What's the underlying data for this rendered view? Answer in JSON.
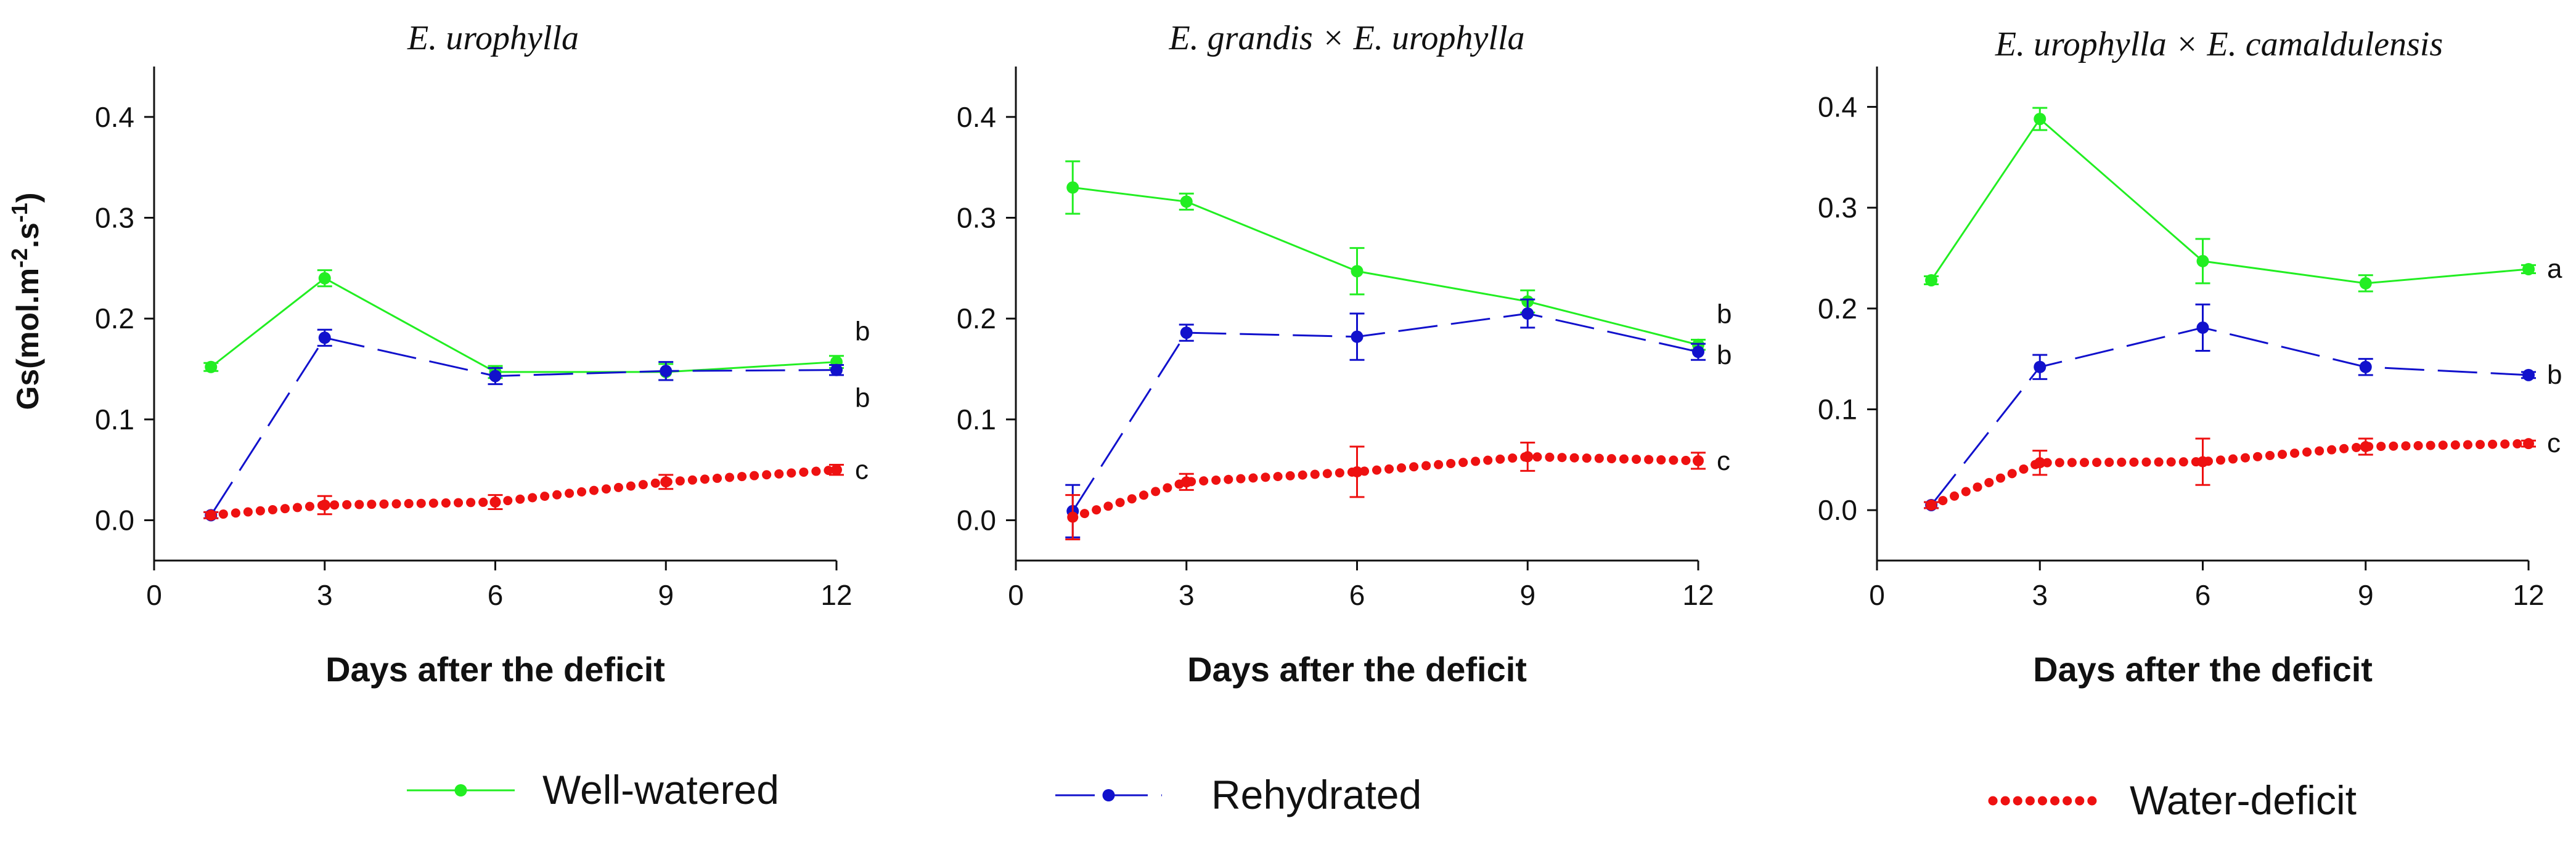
{
  "colors": {
    "well_watered": "#22ee22",
    "rehydrated": "#1111cc",
    "water_deficit": "#ee1111",
    "axis": "#111111"
  },
  "legend": {
    "items": [
      {
        "key": "well_watered",
        "label": "Well-watered",
        "style": "solid"
      },
      {
        "key": "rehydrated",
        "label": "Rehydrated",
        "style": "dashed"
      },
      {
        "key": "water_deficit",
        "label": "Water-deficit",
        "style": "dotted"
      }
    ]
  },
  "chart_data": [
    {
      "type": "line",
      "title": "E. urophylla",
      "xlabel": "Days after the deficit",
      "ylabel": "Gs(mol.m-2.s-1)",
      "x": [
        1,
        3,
        6,
        9,
        12
      ],
      "xlim": [
        0,
        12
      ],
      "ylim": [
        -0.04,
        0.45
      ],
      "xticks": [
        0,
        3,
        6,
        9,
        12
      ],
      "yticks": [
        0.0,
        0.1,
        0.2,
        0.3,
        0.4
      ],
      "series": [
        {
          "name": "Well-watered",
          "key": "well_watered",
          "values": [
            0.152,
            0.24,
            0.147,
            0.147,
            0.157
          ],
          "errors": [
            0.004,
            0.008,
            0.006,
            0.008,
            0.006
          ],
          "letter": "b"
        },
        {
          "name": "Rehydrated",
          "key": "rehydrated",
          "values": [
            0.005,
            0.181,
            0.143,
            0.148,
            0.149
          ],
          "errors": [
            0.003,
            0.008,
            0.008,
            0.009,
            0.005
          ],
          "letter": "b"
        },
        {
          "name": "Water-deficit",
          "key": "water_deficit",
          "values": [
            0.005,
            0.015,
            0.018,
            0.038,
            0.05
          ],
          "errors": [
            0.003,
            0.009,
            0.007,
            0.007,
            0.005
          ],
          "letter": "c"
        }
      ]
    },
    {
      "type": "line",
      "title": "E. grandis × E. urophylla",
      "xlabel": "Days after the deficit",
      "ylabel": "",
      "x": [
        1,
        3,
        6,
        9,
        12
      ],
      "xlim": [
        0,
        12
      ],
      "ylim": [
        -0.04,
        0.45
      ],
      "xticks": [
        0,
        3,
        6,
        9,
        12
      ],
      "yticks": [
        0.0,
        0.1,
        0.2,
        0.3,
        0.4
      ],
      "series": [
        {
          "name": "Well-watered",
          "key": "well_watered",
          "values": [
            0.33,
            0.316,
            0.247,
            0.217,
            0.174
          ],
          "errors": [
            0.026,
            0.008,
            0.023,
            0.011,
            0.005
          ],
          "letter": "b"
        },
        {
          "name": "Rehydrated",
          "key": "rehydrated",
          "values": [
            0.009,
            0.186,
            0.182,
            0.205,
            0.167
          ],
          "errors": [
            0.026,
            0.008,
            0.023,
            0.014,
            0.008
          ],
          "letter": "b"
        },
        {
          "name": "Water-deficit",
          "key": "water_deficit",
          "values": [
            0.003,
            0.038,
            0.048,
            0.063,
            0.059
          ],
          "errors": [
            0.022,
            0.008,
            0.025,
            0.014,
            0.008
          ],
          "letter": "c"
        }
      ]
    },
    {
      "type": "line",
      "title": "E. urophylla × E. camaldulensis",
      "xlabel": "Days after the deficit",
      "ylabel": "",
      "x": [
        1,
        3,
        6,
        9,
        12
      ],
      "xlim": [
        0,
        12
      ],
      "ylim": [
        -0.05,
        0.44
      ],
      "xticks": [
        0,
        3,
        6,
        9,
        12
      ],
      "yticks": [
        0.0,
        0.1,
        0.2,
        0.3,
        0.4
      ],
      "series": [
        {
          "name": "Well-watered",
          "key": "well_watered",
          "values": [
            0.228,
            0.388,
            0.247,
            0.225,
            0.239
          ],
          "errors": [
            0.004,
            0.011,
            0.022,
            0.008,
            0.004
          ],
          "letter": "a"
        },
        {
          "name": "Rehydrated",
          "key": "rehydrated",
          "values": [
            0.005,
            0.142,
            0.181,
            0.142,
            0.134
          ],
          "errors": [
            0.003,
            0.012,
            0.023,
            0.008,
            0.003
          ],
          "letter": "b"
        },
        {
          "name": "Water-deficit",
          "key": "water_deficit",
          "values": [
            0.005,
            0.047,
            0.048,
            0.063,
            0.066
          ],
          "errors": [
            0.003,
            0.012,
            0.023,
            0.008,
            0.003
          ],
          "letter": "c"
        }
      ]
    }
  ]
}
